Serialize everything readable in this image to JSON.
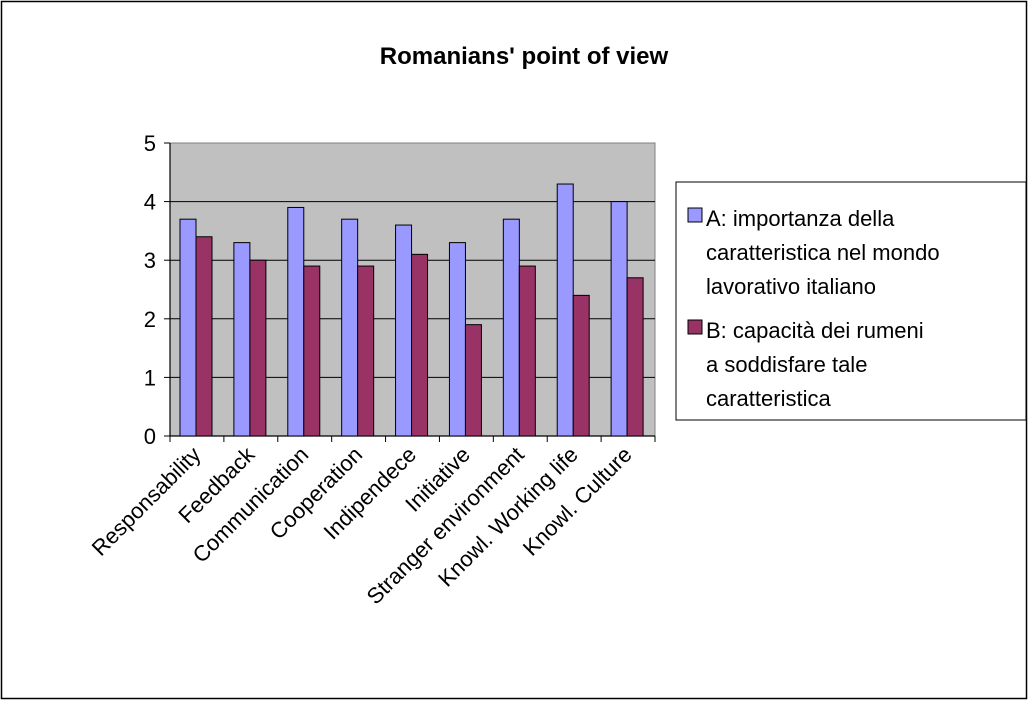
{
  "chart_data": {
    "type": "bar",
    "title": "Romanians' point of view",
    "xlabel": "",
    "ylabel": "",
    "ylim": [
      0,
      5
    ],
    "yticks": [
      "0",
      "1",
      "2",
      "3",
      "4",
      "5"
    ],
    "grid": true,
    "legend_position": "right",
    "categories": [
      "Responsability",
      "Feedback",
      "Communication",
      "Cooperation",
      "Indipendece",
      "Initiative",
      "Stranger environment",
      "Knowl. Working life",
      "Knowl. Culture"
    ],
    "series": [
      {
        "name": "A: importanza della caratteristica nel mondo lavorativo italiano",
        "legend_lines": [
          "A: importanza della",
          "caratteristica nel mondo",
          "lavorativo italiano"
        ],
        "color": "#9999ff",
        "values": [
          3.7,
          3.3,
          3.9,
          3.7,
          3.6,
          3.3,
          3.7,
          4.3,
          4.0
        ]
      },
      {
        "name": "B: capacità dei rumeni a soddisfare tale caratteristica",
        "legend_lines": [
          "B: capacità dei rumeni",
          "a soddisfare tale",
          "caratteristica"
        ],
        "color": "#993366",
        "values": [
          3.4,
          3.0,
          2.9,
          2.9,
          3.1,
          1.9,
          2.9,
          2.4,
          2.7
        ]
      }
    ],
    "plot_background": "#c0c0c0"
  }
}
